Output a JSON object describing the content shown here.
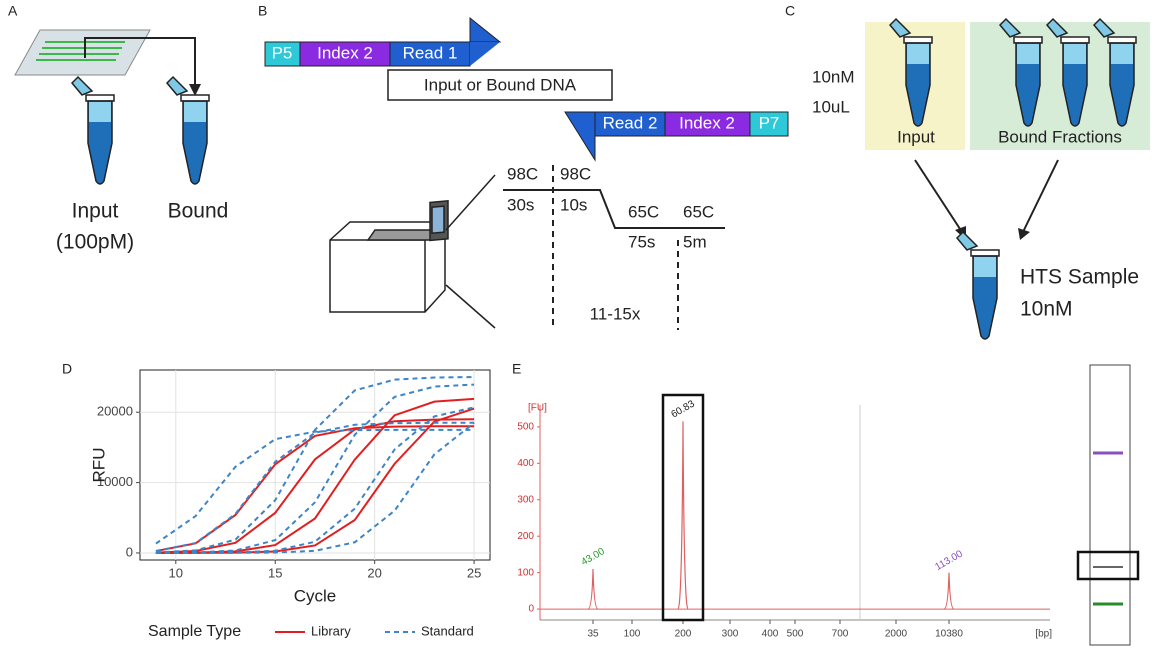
{
  "panels": {
    "a": {
      "letter": "A",
      "input": "Input",
      "input_conc": "(100pM)",
      "bound": "Bound"
    },
    "b": {
      "letter": "B",
      "top_strand": [
        "P5",
        "Index 2",
        "Read 1"
      ],
      "insert": "Input or Bound DNA",
      "bottom_strand": [
        "Read 2",
        "Index 2",
        "P7"
      ],
      "profile": [
        "98C",
        "30s",
        "98C",
        "10s",
        "65C",
        "75s",
        "65C",
        "5m"
      ],
      "cycles": "11-15x"
    },
    "c": {
      "letter": "C",
      "conc": "10nM",
      "vol": "10uL",
      "input": "Input",
      "bound": "Bound Fractions",
      "sample": "HTS Sample",
      "sample_conc": "10nM"
    },
    "d": {
      "letter": "D"
    },
    "e": {
      "letter": "E"
    }
  },
  "chart_data": [
    {
      "type": "line",
      "x_label": "Cycle",
      "y_label": "RFU",
      "legend_title": "Sample Type",
      "grid": true,
      "x": [
        9,
        11,
        13,
        15,
        17,
        19,
        21,
        23,
        25
      ],
      "xlim": [
        8.2,
        25.8
      ],
      "xticks": [
        10,
        15,
        20,
        25
      ],
      "ylim": [
        -1000,
        26000
      ],
      "yticks": [
        0,
        10000,
        20000
      ],
      "series": [
        {
          "name": "Library",
          "color": "#e02020",
          "dash": false,
          "values": [
            270,
            1370,
            5400,
            12600,
            16630,
            17730,
            17950,
            18000,
            18000
          ]
        },
        {
          "name": "Library",
          "color": "#e02020",
          "dash": false,
          "values": [
            57,
            285,
            1444,
            5700,
            13300,
            17560,
            18720,
            18940,
            19000
          ]
        },
        {
          "name": "Library",
          "color": "#e02020",
          "dash": false,
          "values": [
            9,
            44,
            220,
            1120,
            4900,
            13270,
            19560,
            21500,
            21900
          ]
        },
        {
          "name": "Library",
          "color": "#e02020",
          "dash": false,
          "values": [
            0,
            8,
            40,
            210,
            1070,
            4680,
            12660,
            18670,
            20520
          ]
        },
        {
          "name": "Standard",
          "color": "#3d85c6",
          "dash": true,
          "values": [
            1330,
            5250,
            12250,
            16170,
            17240,
            17450,
            17500,
            17500,
            17500
          ]
        },
        {
          "name": "Standard",
          "color": "#3d85c6",
          "dash": true,
          "values": [
            280,
            1410,
            5550,
            12950,
            17090,
            18220,
            18440,
            18500,
            18500
          ]
        },
        {
          "name": "Standard",
          "color": "#3d85c6",
          "dash": true,
          "values": [
            75,
            375,
            1900,
            7500,
            17500,
            23100,
            24630,
            24930,
            25000
          ]
        },
        {
          "name": "Standard",
          "color": "#3d85c6",
          "dash": true,
          "values": [
            19,
            72,
            360,
            1820,
            7200,
            16800,
            22180,
            23640,
            23930
          ]
        },
        {
          "name": "Standard",
          "color": "#3d85c6",
          "dash": true,
          "values": [
            2,
            17,
            63,
            315,
            1600,
            6300,
            14700,
            19400,
            20690
          ]
        },
        {
          "name": "Standard",
          "color": "#3d85c6",
          "dash": true,
          "values": [
            0,
            2,
            16,
            60,
            300,
            1520,
            6000,
            14000,
            18480
          ]
        }
      ]
    },
    {
      "type": "electropherogram",
      "y_label": "[FU]",
      "x_label": "[bp]",
      "color": "#e06060",
      "ylim": [
        -30,
        560
      ],
      "yticks": [
        0,
        100,
        200,
        300,
        400,
        500
      ],
      "xticks": [
        35,
        100,
        200,
        300,
        400,
        500,
        700,
        2000,
        10380
      ],
      "peaks": [
        {
          "bp": 35,
          "value": 110,
          "label": "43.00",
          "color": "#2a9a2a"
        },
        {
          "bp": 200,
          "value": 515,
          "label": "60.83",
          "color": "#222222"
        },
        {
          "bp": 10380,
          "value": 100,
          "label": "113.00",
          "color": "#8a4fbf"
        }
      ]
    }
  ]
}
